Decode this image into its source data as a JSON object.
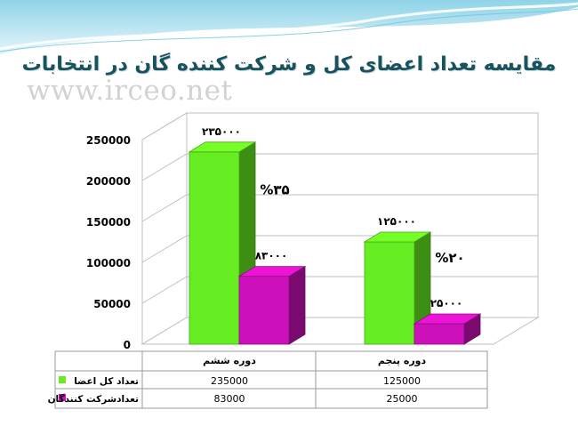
{
  "slide": {
    "title": "مقایسه تعداد اعضای کل و شرکت کننده گان در انتخابات",
    "watermark": "www.irceo.net"
  },
  "chart_data": {
    "type": "bar",
    "categories": [
      "دوره ششم",
      "دوره پنجم"
    ],
    "series": [
      {
        "name": "تعداد کل اعضا",
        "values": [
          235000,
          125000
        ],
        "value_labels": [
          "۲۳۵۰۰۰",
          "۱۲۵۰۰۰"
        ],
        "table_values": [
          "235000",
          "125000"
        ],
        "color": "#66ee22"
      },
      {
        "name": "تعدادشرکت کنندگان",
        "values": [
          83000,
          25000
        ],
        "value_labels": [
          "۸۳۰۰۰",
          "۲۵۰۰۰"
        ],
        "table_values": [
          "83000",
          "25000"
        ],
        "color": "#cc11bb"
      }
    ],
    "annotations": [
      "%۳۵",
      "%۲۰"
    ],
    "y_ticks": [
      "0",
      "50000",
      "100000",
      "150000",
      "200000",
      "250000"
    ],
    "ylim": [
      0,
      250000
    ],
    "data_table": true,
    "three_d": true
  }
}
